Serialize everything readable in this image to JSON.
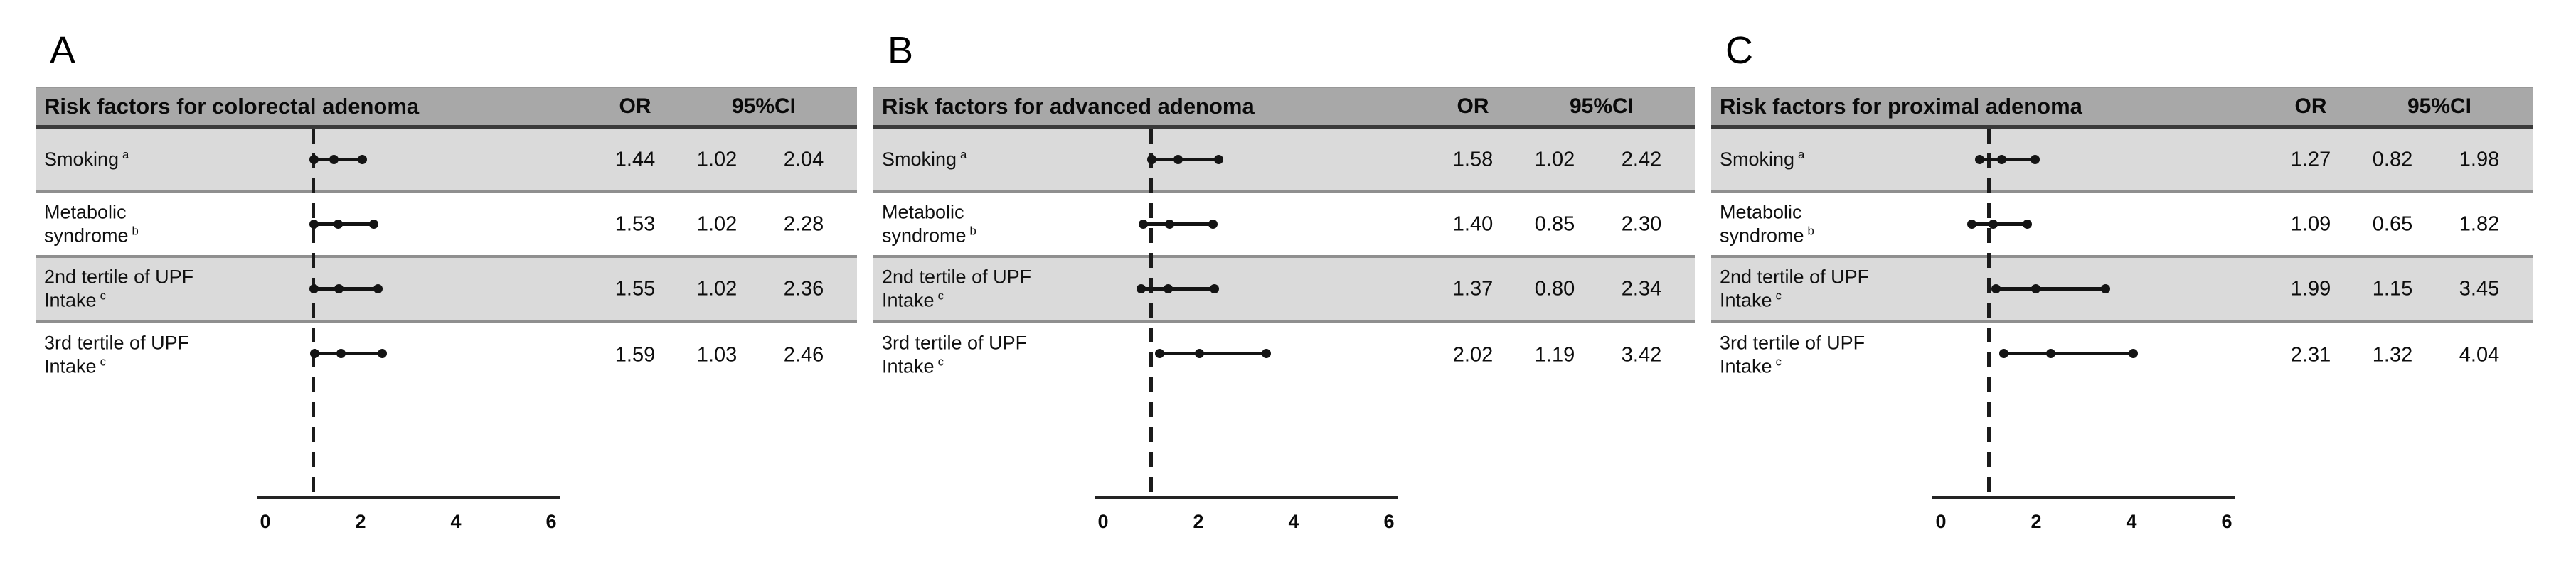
{
  "colors": {
    "header_bg": "#a8a8a8",
    "row_shade": "#dadada",
    "row_plain": "#ffffff",
    "separator": "#8f8f8f",
    "header_border": "#3a3a3a",
    "ink": "#141414"
  },
  "chart_data": [
    {
      "type": "forest",
      "panel_label": "A",
      "title": "Risk factors for colorectal adenoma",
      "columns": {
        "or": "OR",
        "ci": "95%CI"
      },
      "x_axis": {
        "min": 0,
        "max": 6,
        "ticks": [
          0,
          2,
          4,
          6
        ],
        "reference_line": 1
      },
      "rows": [
        {
          "label_lines": [
            "Smoking"
          ],
          "sup": "a",
          "or": "1.44",
          "ci_low": "1.02",
          "ci_high": "2.04"
        },
        {
          "label_lines": [
            "Metabolic",
            "syndrome"
          ],
          "sup": "b",
          "or": "1.53",
          "ci_low": "1.02",
          "ci_high": "2.28"
        },
        {
          "label_lines": [
            "2nd tertile of UPF",
            "Intake"
          ],
          "sup": "c",
          "or": "1.55",
          "ci_low": "1.02",
          "ci_high": "2.36"
        },
        {
          "label_lines": [
            "3rd tertile of UPF",
            "Intake"
          ],
          "sup": "c",
          "or": "1.59",
          "ci_low": "1.03",
          "ci_high": "2.46"
        }
      ]
    },
    {
      "type": "forest",
      "panel_label": "B",
      "title": "Risk factors for advanced adenoma",
      "columns": {
        "or": "OR",
        "ci": "95%CI"
      },
      "x_axis": {
        "min": 0,
        "max": 6,
        "ticks": [
          0,
          2,
          4,
          6
        ],
        "reference_line": 1
      },
      "rows": [
        {
          "label_lines": [
            "Smoking"
          ],
          "sup": "a",
          "or": "1.58",
          "ci_low": "1.02",
          "ci_high": "2.42"
        },
        {
          "label_lines": [
            "Metabolic",
            "syndrome"
          ],
          "sup": "b",
          "or": "1.40",
          "ci_low": "0.85",
          "ci_high": "2.30"
        },
        {
          "label_lines": [
            "2nd tertile of UPF",
            "Intake"
          ],
          "sup": "c",
          "or": "1.37",
          "ci_low": "0.80",
          "ci_high": "2.34"
        },
        {
          "label_lines": [
            "3rd tertile of UPF",
            "Intake"
          ],
          "sup": "c",
          "or": "2.02",
          "ci_low": "1.19",
          "ci_high": "3.42"
        }
      ]
    },
    {
      "type": "forest",
      "panel_label": "C",
      "title": "Risk factors for proximal adenoma",
      "columns": {
        "or": "OR",
        "ci": "95%CI"
      },
      "x_axis": {
        "min": 0,
        "max": 6,
        "ticks": [
          0,
          2,
          4,
          6
        ],
        "reference_line": 1
      },
      "rows": [
        {
          "label_lines": [
            "Smoking"
          ],
          "sup": "a",
          "or": "1.27",
          "ci_low": "0.82",
          "ci_high": "1.98"
        },
        {
          "label_lines": [
            "Metabolic",
            "syndrome"
          ],
          "sup": "b",
          "or": "1.09",
          "ci_low": "0.65",
          "ci_high": "1.82"
        },
        {
          "label_lines": [
            "2nd tertile of UPF",
            "Intake"
          ],
          "sup": "c",
          "or": "1.99",
          "ci_low": "1.15",
          "ci_high": "3.45"
        },
        {
          "label_lines": [
            "3rd tertile of UPF",
            "Intake"
          ],
          "sup": "c",
          "or": "2.31",
          "ci_low": "1.32",
          "ci_high": "4.04"
        }
      ]
    }
  ]
}
